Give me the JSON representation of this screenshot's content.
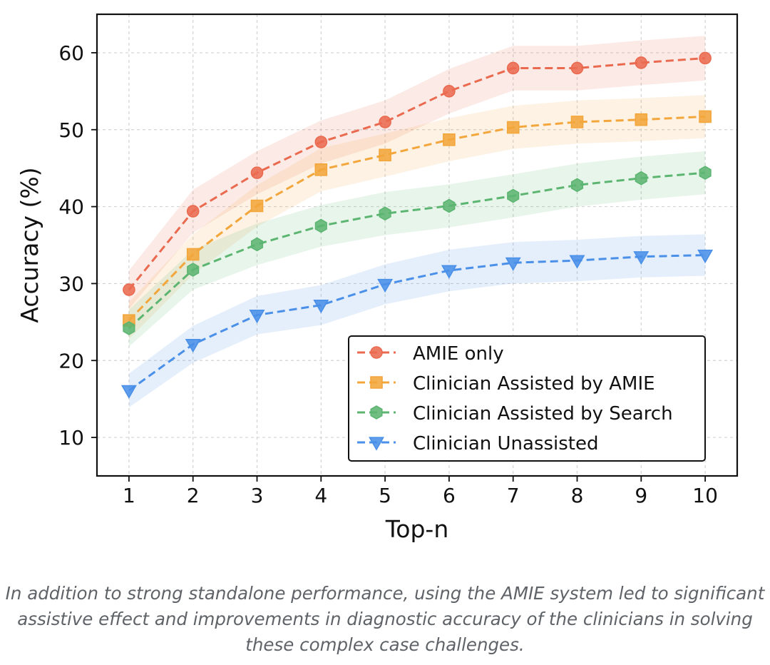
{
  "chart_data": {
    "type": "line",
    "xlabel": "Top-n",
    "ylabel": "Accuracy (%)",
    "x": [
      1,
      2,
      3,
      4,
      5,
      6,
      7,
      8,
      9,
      10
    ],
    "xlim": [
      0.5,
      10.5
    ],
    "ylim": [
      5,
      65
    ],
    "yticks": [
      10,
      20,
      30,
      40,
      50,
      60
    ],
    "grid": true,
    "legend_position": "lower-right",
    "series": [
      {
        "name": "AMIE only",
        "marker": "circle",
        "color": "#ea6a50",
        "values": [
          29.2,
          39.4,
          44.4,
          48.4,
          51.0,
          55.0,
          58.0,
          58.0,
          58.7,
          59.3
        ],
        "band": [
          2.5,
          2.8,
          2.8,
          2.8,
          2.8,
          2.9,
          2.9,
          2.9,
          2.9,
          2.9
        ]
      },
      {
        "name": "Clinician Assisted by AMIE",
        "marker": "square",
        "color": "#f3a63b",
        "values": [
          25.2,
          33.8,
          40.1,
          44.8,
          46.7,
          48.7,
          50.3,
          51.0,
          51.3,
          51.7
        ],
        "band": [
          2.4,
          2.6,
          2.7,
          2.8,
          2.8,
          2.8,
          2.8,
          2.8,
          2.8,
          2.8
        ]
      },
      {
        "name": "Clinician Assisted by Search",
        "marker": "hexagon",
        "color": "#5db572",
        "values": [
          24.2,
          31.8,
          35.1,
          37.5,
          39.1,
          40.1,
          41.4,
          42.8,
          43.7,
          44.4
        ],
        "band": [
          2.4,
          2.6,
          2.7,
          2.7,
          2.8,
          2.8,
          2.8,
          2.8,
          2.8,
          2.8
        ]
      },
      {
        "name": "Clinician Unassisted",
        "marker": "triangle-down",
        "color": "#4a90e8",
        "values": [
          16.1,
          22.1,
          25.9,
          27.2,
          29.9,
          31.7,
          32.7,
          33.0,
          33.5,
          33.7
        ],
        "band": [
          2.2,
          2.4,
          2.5,
          2.6,
          2.6,
          2.7,
          2.7,
          2.7,
          2.7,
          2.7
        ]
      }
    ]
  },
  "caption": "In addition to strong standalone performance, using the AMIE system led to significant assistive effect and improvements in diagnostic accuracy of the clinicians in solving these complex case challenges."
}
